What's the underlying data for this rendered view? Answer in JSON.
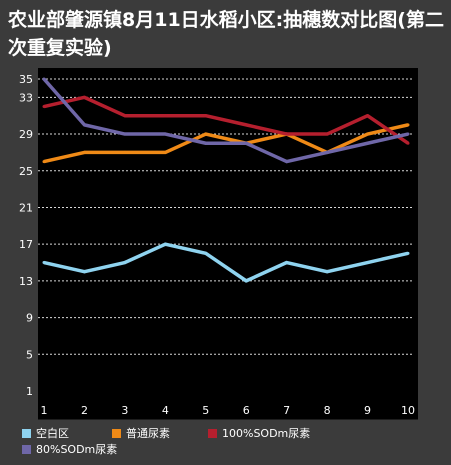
{
  "chart_data": {
    "type": "line",
    "title": "农业部肇源镇8月11日水稻小区:抽穗数对比图(第二次重复实验)",
    "xlabel": "",
    "ylabel": "",
    "x": [
      1,
      2,
      3,
      4,
      5,
      6,
      7,
      8,
      9,
      10
    ],
    "ylim": [
      1,
      35
    ],
    "yticks": [
      1,
      5,
      9,
      13,
      17,
      21,
      25,
      29,
      33,
      35
    ],
    "grid": true,
    "legend_position": "bottom",
    "series": [
      {
        "name": "空白区",
        "color": "#8fd3ef",
        "values": [
          15,
          14,
          15,
          17,
          16,
          13,
          15,
          14,
          15,
          16
        ]
      },
      {
        "name": "普通尿素",
        "color": "#ef8a17",
        "values": [
          26,
          27,
          27,
          27,
          29,
          28,
          29,
          27,
          29,
          30
        ]
      },
      {
        "name": "100%SODm尿素",
        "color": "#b51f2e",
        "values": [
          32,
          33,
          31,
          31,
          31,
          30,
          29,
          29,
          31,
          28
        ]
      },
      {
        "name": "80%SODm尿素",
        "color": "#6f67a8",
        "values": [
          35,
          30,
          29,
          29,
          28,
          28,
          26,
          27,
          28,
          29
        ]
      }
    ]
  }
}
